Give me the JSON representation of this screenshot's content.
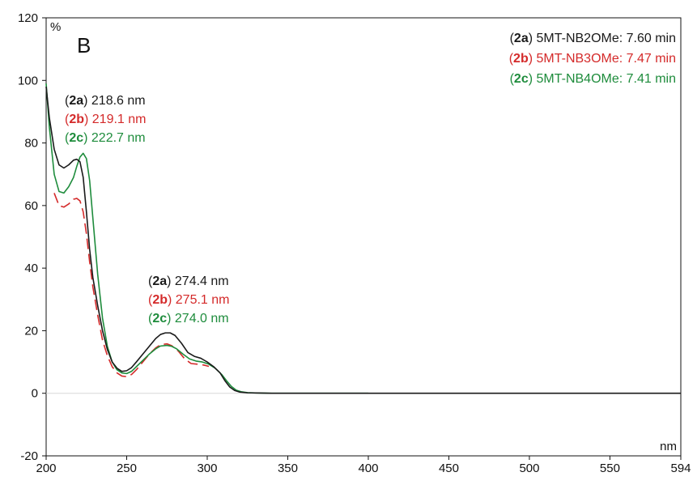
{
  "chart_data": {
    "type": "line",
    "panel_label": "B",
    "y_unit": "%",
    "x_unit": "nm",
    "xlim": [
      200,
      594
    ],
    "ylim": [
      -20,
      120
    ],
    "x_ticks": [
      "200",
      "250",
      "300",
      "350",
      "400",
      "450",
      "500",
      "550",
      "594"
    ],
    "y_ticks": [
      "-20",
      "0",
      "20",
      "40",
      "60",
      "80",
      "100",
      "120"
    ],
    "colors": {
      "2a": "#1a1a1a",
      "2b": "#d42a2a",
      "2c": "#1e8c3c"
    },
    "legend": [
      {
        "id": "2a",
        "bold": "2a",
        "text": " 5MT-NB2OMe: 7.60 min"
      },
      {
        "id": "2b",
        "bold": "2b",
        "text": " 5MT-NB3OMe: 7.47 min"
      },
      {
        "id": "2c",
        "bold": "2c",
        "text": " 5MT-NB4OMe: 7.41 min"
      }
    ],
    "peak_labels_1": [
      {
        "id": "2a",
        "bold": "2a",
        "text": " 218.6 nm"
      },
      {
        "id": "2b",
        "bold": "2b",
        "text": " 219.1 nm"
      },
      {
        "id": "2c",
        "bold": "2c",
        "text": " 222.7 nm"
      }
    ],
    "peak_labels_2": [
      {
        "id": "2a",
        "bold": "2a",
        "text": " 274.4 nm"
      },
      {
        "id": "2b",
        "bold": "2b",
        "text": " 275.1 nm"
      },
      {
        "id": "2c",
        "bold": "2c",
        "text": " 274.0 nm"
      }
    ],
    "series": [
      {
        "id": "2a",
        "style": "solid",
        "x": [
          200,
          202,
          205,
          208,
          211,
          214,
          217,
          219,
          221,
          223,
          225,
          227,
          229,
          232,
          235,
          238,
          241,
          244,
          247,
          250,
          253,
          256,
          260,
          264,
          268,
          271,
          274,
          277,
          280,
          284,
          288,
          292,
          296,
          300,
          304,
          308,
          311,
          314,
          317,
          320,
          325,
          330,
          340,
          360,
          400,
          450,
          500,
          550,
          594
        ],
        "y": [
          98,
          88,
          78,
          73,
          72,
          73,
          74.5,
          74.8,
          74,
          69,
          58,
          46,
          37,
          28,
          20,
          14,
          10,
          8,
          7,
          7.2,
          8.2,
          10,
          12.5,
          15,
          17.5,
          18.8,
          19.3,
          19.3,
          18.5,
          16,
          13,
          11.8,
          11.2,
          10,
          8.5,
          6.5,
          4,
          2,
          0.9,
          0.4,
          0.15,
          0.1,
          0,
          0,
          0,
          0,
          0,
          0,
          0
        ]
      },
      {
        "id": "2b",
        "style": "dashed",
        "x": [
          205,
          208,
          211,
          214,
          217,
          219,
          221,
          223,
          225,
          227,
          229,
          232,
          235,
          238,
          241,
          244,
          247,
          250,
          253,
          256,
          260,
          264,
          268,
          271,
          275,
          278,
          282,
          286,
          290,
          294,
          298,
          301
        ],
        "y": [
          64,
          60,
          59.5,
          60.5,
          62,
          62.3,
          61.5,
          58,
          51,
          42,
          34,
          25,
          17,
          12,
          8.5,
          6.5,
          5.5,
          5.3,
          6,
          7.5,
          10,
          12.5,
          14.5,
          15.5,
          15.8,
          15.2,
          13.5,
          11,
          9.5,
          9.3,
          9,
          8.6
        ]
      },
      {
        "id": "2c",
        "style": "solid",
        "x": [
          200,
          202,
          205,
          208,
          211,
          214,
          217,
          219,
          221,
          223,
          225,
          227,
          229,
          232,
          235,
          238,
          241,
          244,
          247,
          250,
          253,
          256,
          260,
          264,
          268,
          271,
          275,
          278,
          281,
          285,
          289,
          293,
          297,
          301,
          305,
          309,
          312,
          315,
          318,
          321,
          325,
          330,
          340,
          360,
          380,
          400
        ],
        "y": [
          99,
          85,
          70,
          64.5,
          64,
          66,
          69,
          72.5,
          75.5,
          76.7,
          75,
          68,
          56,
          38,
          24,
          15,
          10,
          7.5,
          6.5,
          6.3,
          7,
          8.5,
          10.5,
          12.5,
          14.2,
          15.1,
          15.3,
          15,
          14.2,
          12.5,
          11,
          10.3,
          10,
          9.3,
          8,
          6,
          4,
          2.2,
          1,
          0.5,
          0.2,
          0.1,
          0,
          0,
          0,
          0
        ]
      }
    ]
  }
}
